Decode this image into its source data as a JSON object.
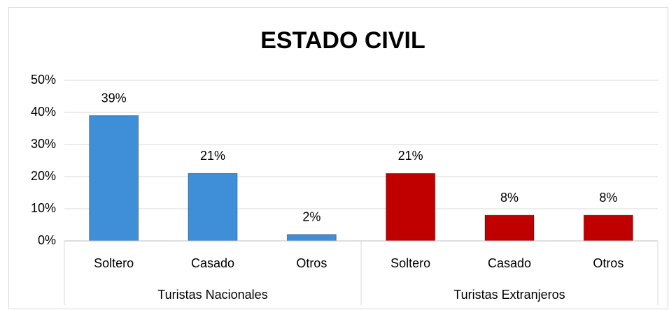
{
  "chart_data": {
    "type": "bar",
    "title": "ESTADO CIVIL",
    "groups": [
      {
        "name": "Turistas Nacionales",
        "color": "#3f8fd8",
        "categories": [
          "Soltero",
          "Casado",
          "Otros"
        ],
        "values": [
          39,
          21,
          2
        ],
        "value_labels": [
          "39%",
          "21%",
          "2%"
        ]
      },
      {
        "name": "Turistas Extranjeros",
        "color": "#c00000",
        "categories": [
          "Soltero",
          "Casado",
          "Otros"
        ],
        "values": [
          21,
          8,
          8
        ],
        "value_labels": [
          "21%",
          "8%",
          "8%"
        ]
      }
    ],
    "ylim": [
      0,
      50
    ],
    "yticks": [
      {
        "value": 0,
        "label": "0%"
      },
      {
        "value": 10,
        "label": "10%"
      },
      {
        "value": 20,
        "label": "20%"
      },
      {
        "value": 30,
        "label": "30%"
      },
      {
        "value": 40,
        "label": "40%"
      },
      {
        "value": 50,
        "label": "50%"
      }
    ],
    "grid": true
  }
}
